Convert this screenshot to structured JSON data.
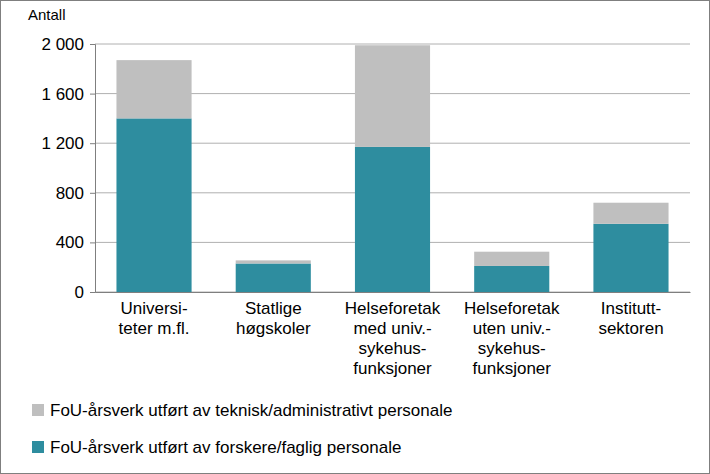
{
  "chart_data": {
    "type": "bar",
    "stacked": true,
    "grid": true,
    "legend": "bottom",
    "y_label": "Antall",
    "categories": [
      "Universi-\nteter m.fl.",
      "Statlige\nhøgskoler",
      "Helseforetak\nmed univ.-\nsykehus-\nfunksjoner",
      "Helseforetak\nuten univ.-\nsykehus-\nfunksjoner",
      "Institutt-\nsektoren"
    ],
    "series": [
      {
        "name": "FoU-årsverk utført av forskere/faglig personale",
        "color": "#2e8d9f",
        "values": [
          1400,
          230,
          1170,
          210,
          550
        ]
      },
      {
        "name": "FoU-årsverk utført av teknisk/administrativt personale",
        "color": "#bfbfbf",
        "values": [
          470,
          25,
          820,
          115,
          170
        ]
      }
    ],
    "ylim": [
      0,
      2000
    ],
    "yticks": [
      0,
      400,
      800,
      {
        "value": 1200,
        "label": "1 200"
      },
      {
        "value": 1600,
        "label": "1 600"
      },
      {
        "value": 2000,
        "label": "2 000"
      }
    ]
  }
}
